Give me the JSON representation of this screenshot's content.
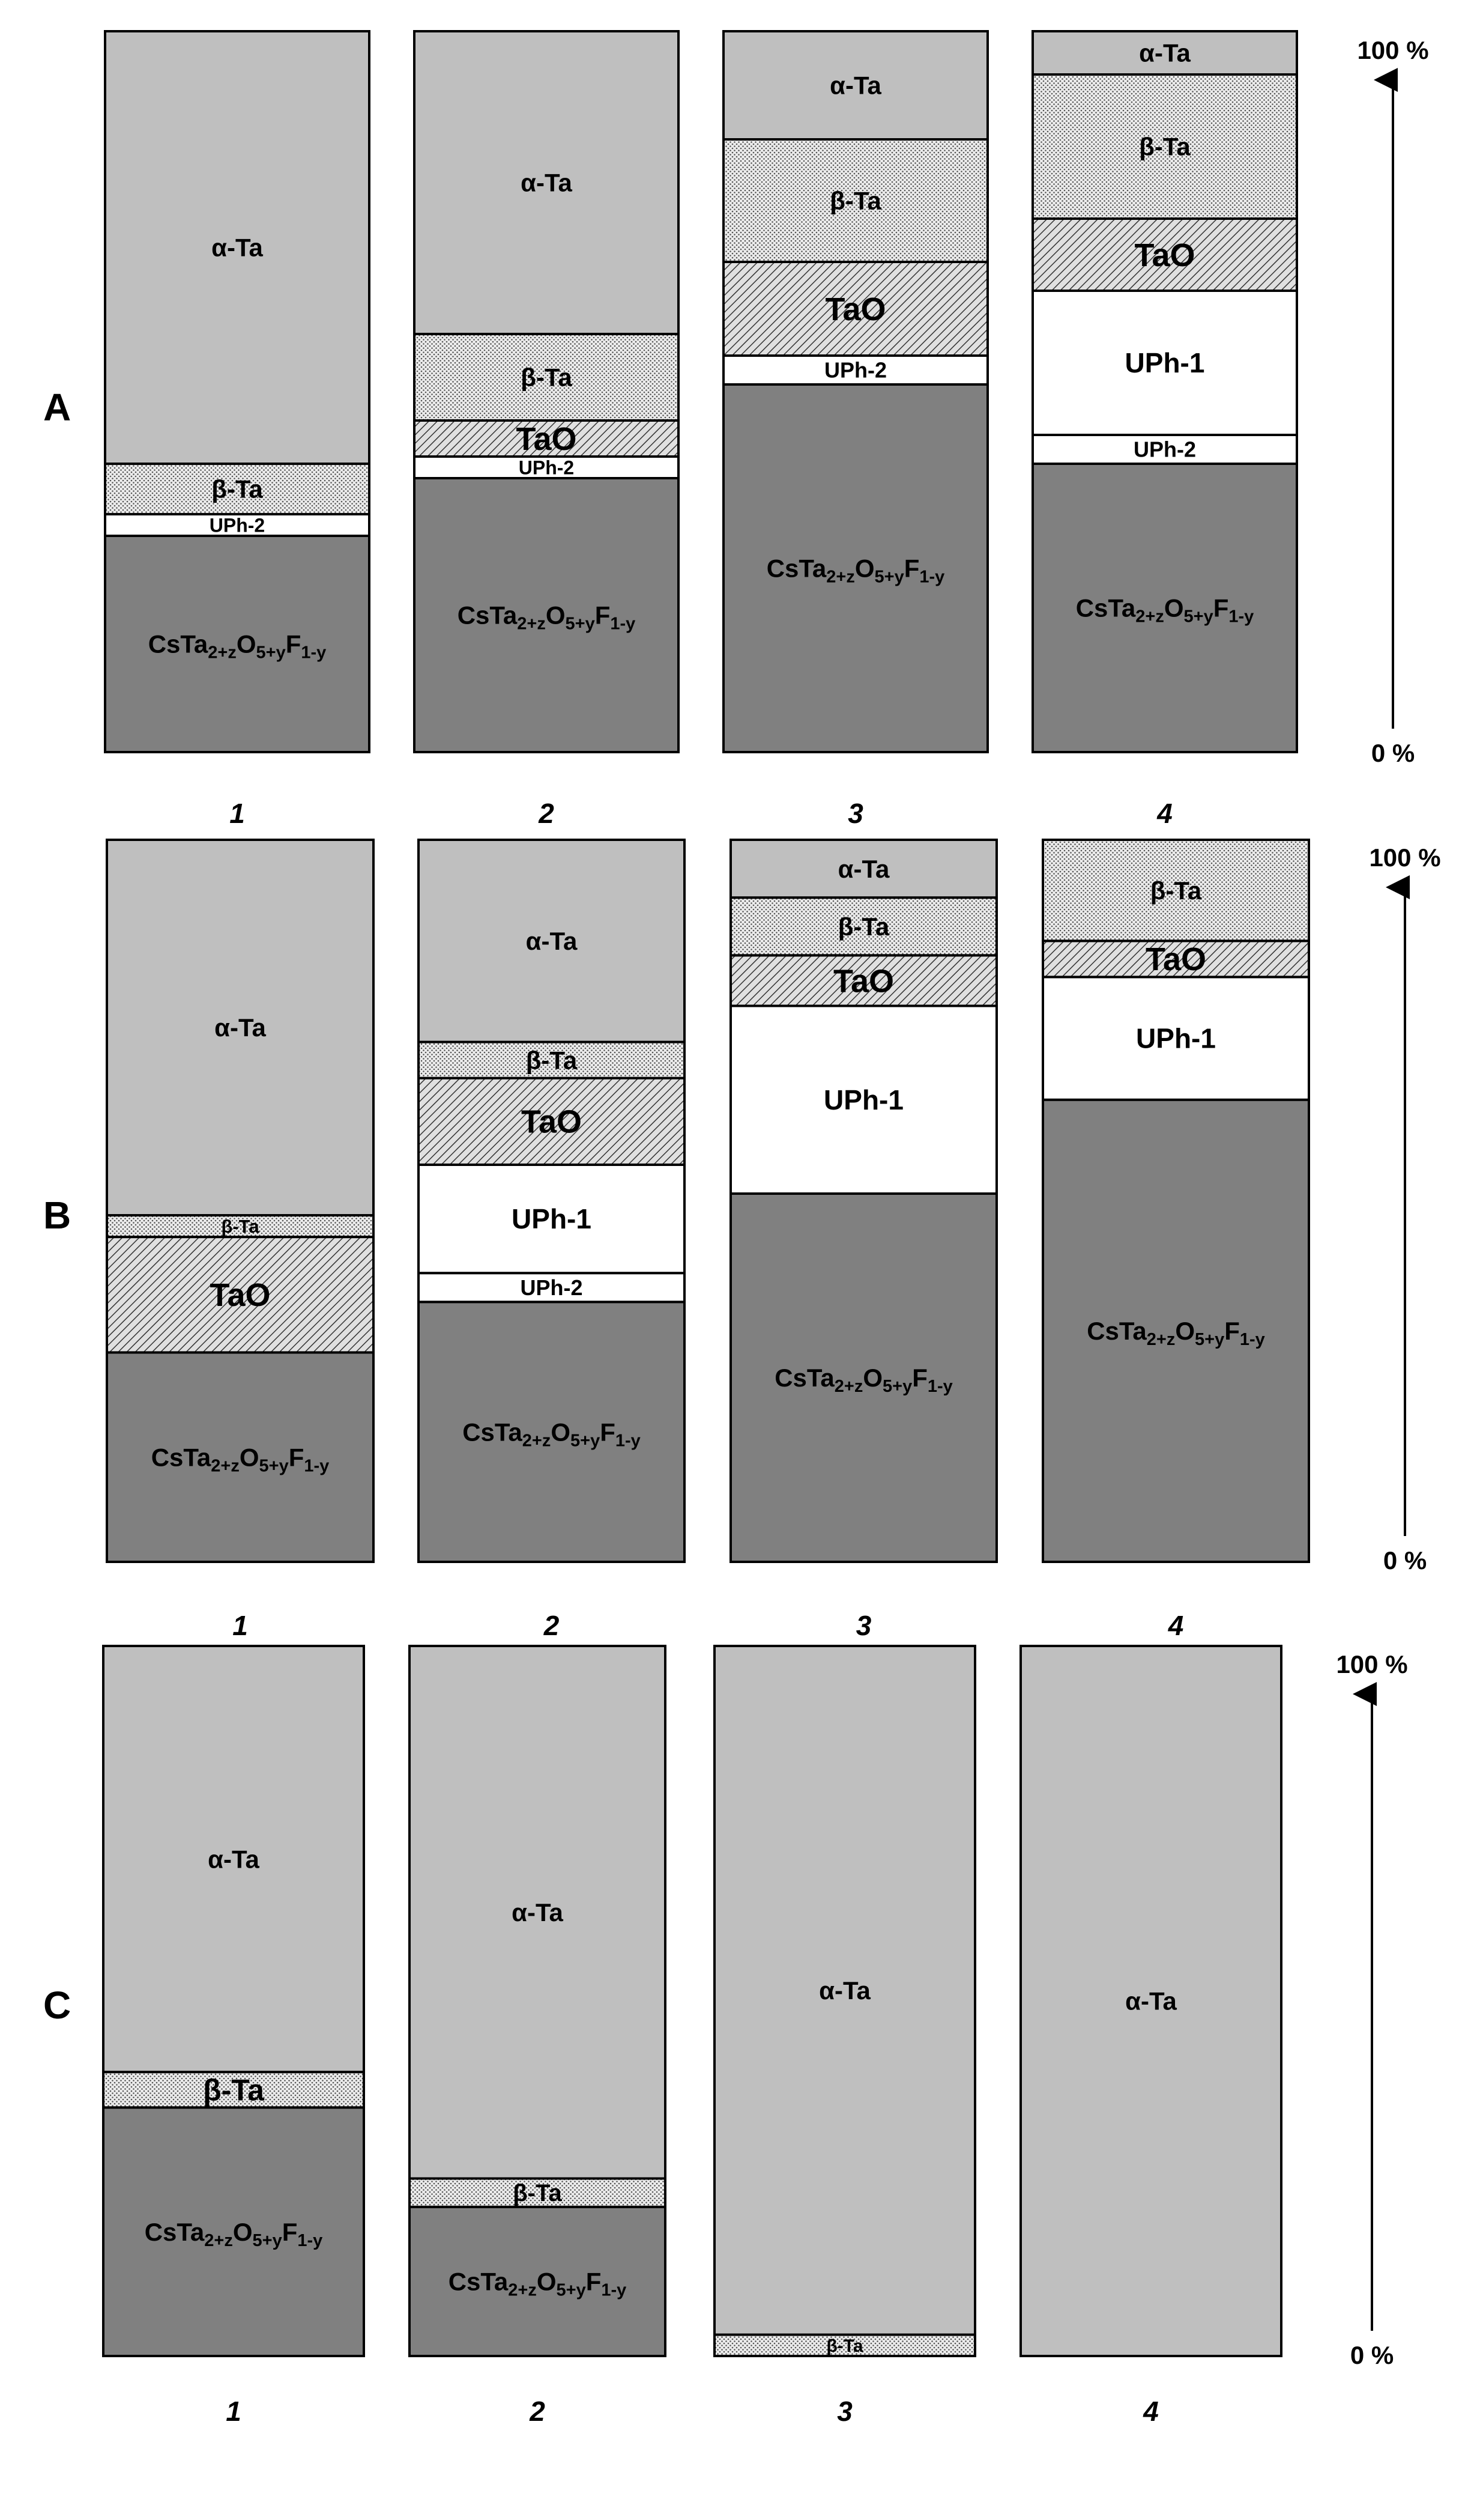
{
  "chart_data": [
    {
      "type": "stacked-bar",
      "panel_label": "A",
      "categories": [
        "1",
        "2",
        "3",
        "4"
      ],
      "unit": "%",
      "ylim": [
        0,
        100
      ],
      "axis_labels": {
        "top": "100 %",
        "bottom": "0 %"
      },
      "bars": [
        {
          "category": "1",
          "segments": [
            {
              "phase": "CsTa2+zO5+yF1-y",
              "value": 30
            },
            {
              "phase": "UPh-2",
              "value": 3
            },
            {
              "phase": "β-Ta",
              "value": 7
            },
            {
              "phase": "α-Ta",
              "value": 60
            }
          ]
        },
        {
          "category": "2",
          "segments": [
            {
              "phase": "CsTa2+zO5+yF1-y",
              "value": 38
            },
            {
              "phase": "UPh-2",
              "value": 3
            },
            {
              "phase": "TaO",
              "value": 5
            },
            {
              "phase": "β-Ta",
              "value": 12
            },
            {
              "phase": "α-Ta",
              "value": 42
            }
          ]
        },
        {
          "category": "3",
          "segments": [
            {
              "phase": "CsTa2+zO5+yF1-y",
              "value": 51
            },
            {
              "phase": "UPh-2",
              "value": 4
            },
            {
              "phase": "TaO",
              "value": 13
            },
            {
              "phase": "β-Ta",
              "value": 17
            },
            {
              "phase": "α-Ta",
              "value": 15
            }
          ]
        },
        {
          "category": "4",
          "segments": [
            {
              "phase": "CsTa2+zO5+yF1-y",
              "value": 40
            },
            {
              "phase": "UPh-2",
              "value": 4
            },
            {
              "phase": "UPh-1",
              "value": 20
            },
            {
              "phase": "TaO",
              "value": 10
            },
            {
              "phase": "β-Ta",
              "value": 20
            },
            {
              "phase": "α-Ta",
              "value": 6
            }
          ]
        }
      ]
    },
    {
      "type": "stacked-bar",
      "panel_label": "B",
      "categories": [
        "1",
        "2",
        "3",
        "4"
      ],
      "unit": "%",
      "ylim": [
        0,
        100
      ],
      "axis_labels": {
        "top": "100 %",
        "bottom": "0 %"
      },
      "bars": [
        {
          "category": "1",
          "segments": [
            {
              "phase": "CsTa2+zO5+yF1-y",
              "value": 29
            },
            {
              "phase": "TaO",
              "value": 16
            },
            {
              "phase": "β-Ta",
              "value": 3
            },
            {
              "phase": "α-Ta",
              "value": 52
            }
          ]
        },
        {
          "category": "2",
          "segments": [
            {
              "phase": "CsTa2+zO5+yF1-y",
              "value": 36
            },
            {
              "phase": "UPh-2",
              "value": 4
            },
            {
              "phase": "UPh-1",
              "value": 15
            },
            {
              "phase": "TaO",
              "value": 12
            },
            {
              "phase": "β-Ta",
              "value": 5
            },
            {
              "phase": "α-Ta",
              "value": 28
            }
          ]
        },
        {
          "category": "3",
          "segments": [
            {
              "phase": "CsTa2+zO5+yF1-y",
              "value": 51
            },
            {
              "phase": "UPh-1",
              "value": 26
            },
            {
              "phase": "TaO",
              "value": 7
            },
            {
              "phase": "β-Ta",
              "value": 8
            },
            {
              "phase": "α-Ta",
              "value": 8
            }
          ]
        },
        {
          "category": "4",
          "segments": [
            {
              "phase": "CsTa2+zO5+yF1-y",
              "value": 64
            },
            {
              "phase": "UPh-1",
              "value": 17
            },
            {
              "phase": "TaO",
              "value": 5
            },
            {
              "phase": "β-Ta",
              "value": 14
            }
          ]
        }
      ]
    },
    {
      "type": "stacked-bar",
      "panel_label": "C",
      "categories": [
        "1",
        "2",
        "3",
        "4"
      ],
      "unit": "%",
      "ylim": [
        0,
        100
      ],
      "axis_labels": {
        "top": "100 %",
        "bottom": "0 %"
      },
      "bars": [
        {
          "category": "1",
          "segments": [
            {
              "phase": "CsTa2+zO5+yF1-y",
              "value": 35
            },
            {
              "phase": "β-Ta",
              "value": 5
            },
            {
              "phase": "α-Ta",
              "value": 60
            }
          ]
        },
        {
          "category": "2",
          "segments": [
            {
              "phase": "CsTa2+zO5+yF1-y",
              "value": 21
            },
            {
              "phase": "β-Ta",
              "value": 4
            },
            {
              "phase": "α-Ta",
              "value": 75
            }
          ]
        },
        {
          "category": "3",
          "segments": [
            {
              "phase": "β-Ta",
              "value": 3
            },
            {
              "phase": "α-Ta",
              "value": 97
            }
          ]
        },
        {
          "category": "4",
          "segments": [
            {
              "phase": "α-Ta",
              "value": 100
            }
          ]
        }
      ]
    }
  ],
  "phase_styles": {
    "α-Ta": {
      "fill": "#bfbfbf"
    },
    "β-Ta": {
      "fill": "#e8e8e8",
      "pattern": "dots"
    },
    "TaO": {
      "fill": "#d9d9d9",
      "pattern": "hatch"
    },
    "UPh-1": {
      "fill": "#ffffff"
    },
    "UPh-2": {
      "fill": "#ffffff"
    },
    "CsTa2+zO5+yF1-y": {
      "fill": "#808080"
    }
  }
}
